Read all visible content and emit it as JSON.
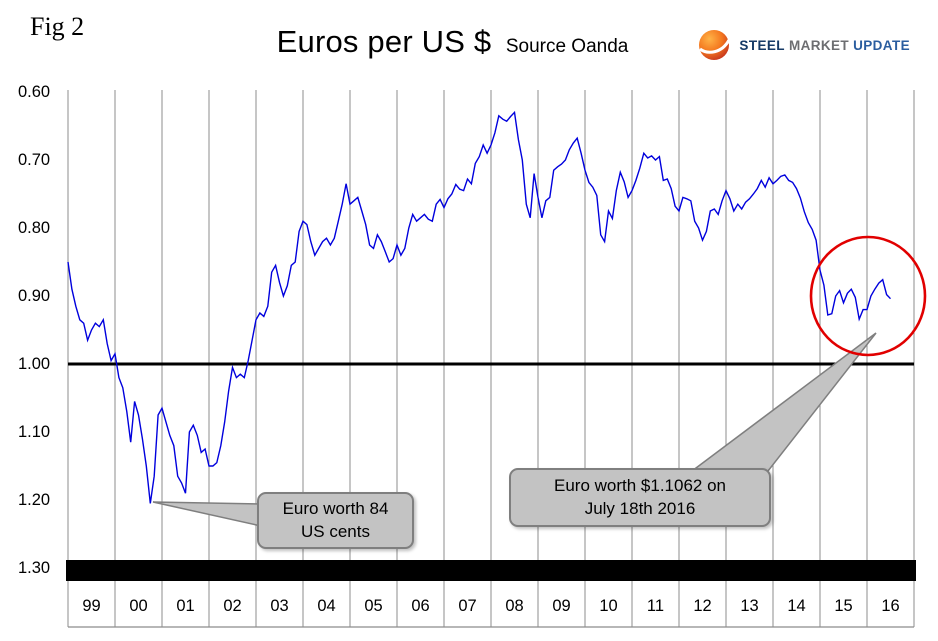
{
  "header": {
    "fig_label": "Fig 2",
    "title": "Euros per US $",
    "source": "Source Oanda"
  },
  "logo": {
    "word1": "STEEL",
    "word2": "MARKET",
    "word3": "UPDATE",
    "icon": "orange-globe-swoosh"
  },
  "chart_data": {
    "type": "line",
    "title": "Euros per US $",
    "source": "Source Oanda",
    "ylabel": "Euros per US Dollar",
    "y_axis_inverted": true,
    "y_range": [
      0.6,
      1.3
    ],
    "y_ticks": [
      "0.60",
      "0.70",
      "0.80",
      "0.90",
      "1.00",
      "1.10",
      "1.20",
      "1.30"
    ],
    "x_tick_labels": [
      "99",
      "00",
      "01",
      "02",
      "03",
      "04",
      "05",
      "06",
      "07",
      "08",
      "09",
      "10",
      "11",
      "12",
      "13",
      "14",
      "15",
      "16"
    ],
    "grid": "vertical-only",
    "reference_line_value": 1.0,
    "line_color": "#0000dd",
    "highlight_circle_color": "#e10000",
    "series": [
      {
        "name": "EUR per USD",
        "start_year": 1999,
        "points_per_year": 12,
        "values": [
          0.85,
          0.89,
          0.915,
          0.935,
          0.94,
          0.965,
          0.95,
          0.94,
          0.945,
          0.935,
          0.97,
          0.995,
          0.985,
          1.02,
          1.035,
          1.07,
          1.115,
          1.055,
          1.075,
          1.11,
          1.15,
          1.205,
          1.165,
          1.075,
          1.065,
          1.085,
          1.105,
          1.12,
          1.165,
          1.175,
          1.19,
          1.1,
          1.09,
          1.105,
          1.13,
          1.125,
          1.15,
          1.15,
          1.145,
          1.12,
          1.085,
          1.04,
          1.005,
          1.02,
          1.015,
          1.02,
          0.995,
          0.965,
          0.935,
          0.925,
          0.93,
          0.915,
          0.865,
          0.855,
          0.88,
          0.9,
          0.885,
          0.855,
          0.85,
          0.805,
          0.79,
          0.795,
          0.82,
          0.84,
          0.83,
          0.82,
          0.815,
          0.825,
          0.815,
          0.79,
          0.765,
          0.735,
          0.765,
          0.76,
          0.755,
          0.775,
          0.795,
          0.825,
          0.83,
          0.81,
          0.82,
          0.835,
          0.85,
          0.845,
          0.825,
          0.84,
          0.83,
          0.8,
          0.78,
          0.79,
          0.785,
          0.78,
          0.787,
          0.79,
          0.765,
          0.758,
          0.77,
          0.757,
          0.75,
          0.736,
          0.743,
          0.745,
          0.728,
          0.735,
          0.705,
          0.695,
          0.678,
          0.69,
          0.678,
          0.66,
          0.635,
          0.64,
          0.643,
          0.636,
          0.63,
          0.67,
          0.7,
          0.765,
          0.785,
          0.72,
          0.755,
          0.785,
          0.76,
          0.755,
          0.715,
          0.71,
          0.706,
          0.7,
          0.685,
          0.675,
          0.668,
          0.69,
          0.715,
          0.733,
          0.74,
          0.752,
          0.81,
          0.82,
          0.775,
          0.786,
          0.745,
          0.718,
          0.732,
          0.755,
          0.745,
          0.73,
          0.712,
          0.69,
          0.697,
          0.694,
          0.7,
          0.695,
          0.73,
          0.728,
          0.742,
          0.768,
          0.775,
          0.755,
          0.757,
          0.76,
          0.79,
          0.8,
          0.818,
          0.805,
          0.775,
          0.772,
          0.78,
          0.76,
          0.745,
          0.757,
          0.775,
          0.765,
          0.772,
          0.762,
          0.757,
          0.75,
          0.742,
          0.73,
          0.74,
          0.726,
          0.735,
          0.73,
          0.724,
          0.722,
          0.73,
          0.733,
          0.742,
          0.756,
          0.776,
          0.792,
          0.802,
          0.818,
          0.862,
          0.884,
          0.928,
          0.926,
          0.9,
          0.892,
          0.91,
          0.896,
          0.89,
          0.902,
          0.934,
          0.92,
          0.92,
          0.9,
          0.89,
          0.881,
          0.876,
          0.898,
          0.904
        ]
      }
    ],
    "annotations": {
      "callout1": {
        "line1": "Euro worth 84",
        "line2": "US cents"
      },
      "callout2": {
        "line1": "Euro worth $1.1062 on",
        "line2": "July 18th 2016"
      }
    }
  }
}
